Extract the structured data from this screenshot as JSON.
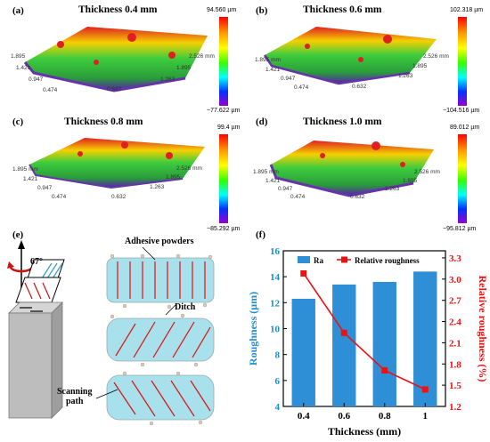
{
  "panels": [
    {
      "letter": "(a)",
      "title": "Thickness 0.4 mm",
      "cmax": "94.560 µm",
      "cmin": "−77.622 µm",
      "ticks": [
        "1.895",
        "1.421",
        "0.947",
        "0.474",
        "0.632",
        "1.263",
        "1.895",
        "2.526 mm"
      ]
    },
    {
      "letter": "(b)",
      "title": "Thickness 0.6 mm",
      "cmax": "102.318 µm",
      "cmin": "−104.516 µm",
      "ticks": [
        "1.895 mm",
        "1.421",
        "0.947",
        "0.474",
        "0.632",
        "1.263",
        "1.895",
        "2.526 mm"
      ]
    },
    {
      "letter": "(c)",
      "title": "Thickness 0.8 mm",
      "cmax": "99.4 µm",
      "cmin": "−85.292 µm",
      "ticks": [
        "1.895 mm",
        "1.421",
        "0.947",
        "0.474",
        "0.632",
        "1.263",
        "1.895",
        "2.526 mm"
      ]
    },
    {
      "letter": "(d)",
      "title": "Thickness 1.0 mm",
      "cmax": "89.012 µm",
      "cmin": "−95.812 µm",
      "ticks": [
        "1.895 mm",
        "1.421",
        "0.947",
        "0.474",
        "0.632",
        "1.263",
        "1.895",
        "2.526 mm"
      ]
    }
  ],
  "schematic": {
    "letter": "(e)",
    "angle": "67°",
    "adhesive": "Adhesive powders",
    "ditch": "Ditch",
    "scanning": "Scanning\npath"
  },
  "chart_data": {
    "letter": "(f)",
    "type": "bar",
    "categories": [
      "0.4",
      "0.6",
      "0.8",
      "1"
    ],
    "xlabel": "Thickness (mm)",
    "ylabel": "Roughness (μm)",
    "y2label": "Relative roughness (%)",
    "ylim": [
      4,
      16
    ],
    "yticks": [
      4,
      6,
      8,
      10,
      12,
      14,
      16
    ],
    "y2lim": [
      1.2,
      3.4
    ],
    "y2ticks": [
      1.2,
      1.5,
      1.8,
      2.1,
      2.4,
      2.7,
      3.0,
      3.3
    ],
    "legend_position": "top-center",
    "series": [
      {
        "name": "Ra",
        "kind": "bar",
        "axis": "left",
        "color": "#2e8fd6",
        "values": [
          12.3,
          13.4,
          13.6,
          14.4
        ]
      },
      {
        "name": "Relative roughness",
        "kind": "line",
        "axis": "right",
        "color": "#ee1111",
        "values": [
          3.08,
          2.24,
          1.71,
          1.44
        ]
      }
    ]
  }
}
